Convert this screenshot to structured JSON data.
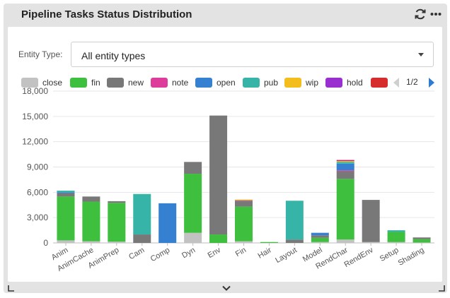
{
  "widget": {
    "title": "Pipeline Tasks Status Distribution",
    "refresh_icon": "refresh-icon",
    "more_icon": "more-horizontal-icon"
  },
  "filter": {
    "label": "Entity Type:",
    "value": "All entity types"
  },
  "legend": {
    "items": [
      {
        "label": "close",
        "color": "#c2c2c2"
      },
      {
        "label": "fin",
        "color": "#3ebf3e"
      },
      {
        "label": "new",
        "color": "#787878"
      },
      {
        "label": "note",
        "color": "#de3c9a"
      },
      {
        "label": "open",
        "color": "#3580d0"
      },
      {
        "label": "pub",
        "color": "#36b4a8"
      },
      {
        "label": "wip",
        "color": "#f2bd1d"
      },
      {
        "label": "hold",
        "color": "#9a2fcf"
      },
      {
        "label": "",
        "color": "#d62c2c"
      }
    ],
    "page": "1/2"
  },
  "chart_data": {
    "type": "bar",
    "stacked": true,
    "categories": [
      "Anim",
      "AnimCache",
      "AnimPrep",
      "Cam",
      "Comp",
      "Dyn",
      "Env",
      "Fin",
      "Hair",
      "Layout",
      "Model",
      "RendChar",
      "RendEnv",
      "Setup",
      "Shading"
    ],
    "ylim": [
      0,
      18000
    ],
    "yticks": [
      "0",
      "3,000",
      "6,000",
      "9,000",
      "12,000",
      "15,000",
      "18,000"
    ],
    "grid": true,
    "series": [
      {
        "name": "close",
        "color": "#c2c2c2",
        "values": [
          300,
          200,
          150,
          0,
          0,
          1200,
          0,
          200,
          0,
          0,
          100,
          400,
          100,
          100,
          50
        ]
      },
      {
        "name": "fin",
        "color": "#3ebf3e",
        "values": [
          5200,
          4700,
          4600,
          0,
          0,
          7000,
          1000,
          4100,
          100,
          0,
          500,
          7200,
          0,
          1200,
          400
        ]
      },
      {
        "name": "new",
        "color": "#787878",
        "values": [
          400,
          600,
          200,
          1000,
          0,
          1400,
          14100,
          700,
          0,
          400,
          300,
          900,
          5000,
          0,
          200
        ]
      },
      {
        "name": "note",
        "color": "#de3c9a",
        "values": [
          0,
          0,
          0,
          0,
          0,
          0,
          0,
          50,
          0,
          0,
          0,
          100,
          0,
          0,
          0
        ]
      },
      {
        "name": "open",
        "color": "#3580d0",
        "values": [
          100,
          0,
          0,
          0,
          4700,
          0,
          0,
          0,
          0,
          0,
          300,
          800,
          0,
          0,
          0
        ]
      },
      {
        "name": "pub",
        "color": "#36b4a8",
        "values": [
          200,
          0,
          0,
          4800,
          0,
          0,
          0,
          0,
          0,
          4600,
          0,
          200,
          0,
          200,
          0
        ]
      },
      {
        "name": "wip",
        "color": "#f2bd1d",
        "values": [
          0,
          0,
          0,
          0,
          0,
          0,
          0,
          50,
          0,
          0,
          0,
          100,
          0,
          0,
          0
        ]
      },
      {
        "name": "hold",
        "color": "#9a2fcf",
        "values": [
          0,
          0,
          0,
          0,
          0,
          0,
          0,
          0,
          0,
          0,
          0,
          50,
          0,
          0,
          0
        ]
      },
      {
        "name": "",
        "color": "#d62c2c",
        "values": [
          0,
          0,
          0,
          0,
          0,
          0,
          0,
          0,
          0,
          0,
          0,
          50,
          0,
          0,
          0
        ]
      }
    ]
  },
  "footer": {
    "expand_icon": "chevron-down-icon",
    "resize_left_icon": "resize-corner-left-icon",
    "resize_right_icon": "resize-corner-right-icon"
  }
}
